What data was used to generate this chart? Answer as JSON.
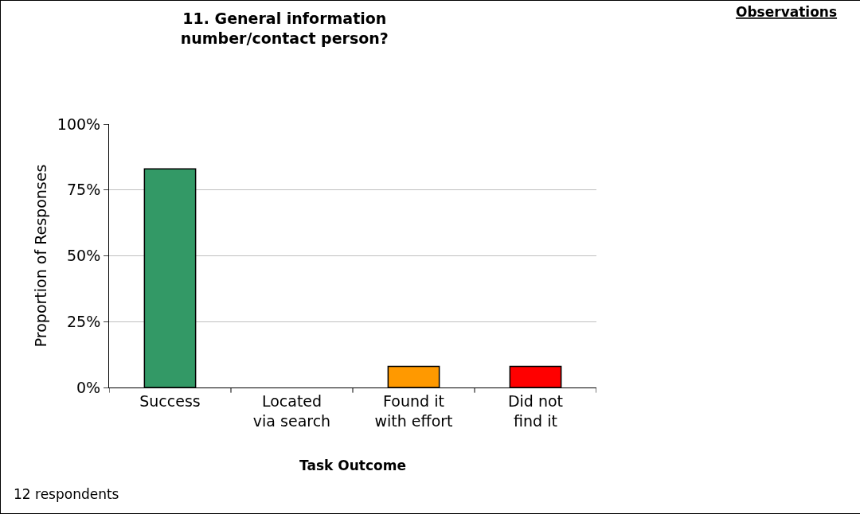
{
  "chart_data": {
    "type": "bar",
    "title": "11. General information\nnumber/contact person?",
    "xlabel": "Task Outcome",
    "ylabel": "Proportion of Responses",
    "categories": [
      "Success",
      "Located\nvia search",
      "Found it\nwith effort",
      "Did not\nfind it"
    ],
    "values": [
      83,
      0,
      8,
      8
    ],
    "colors": [
      "#339966",
      null,
      "#ff9900",
      "#ff0000"
    ],
    "ylim": [
      0,
      100
    ],
    "yticks": [
      {
        "value": 0,
        "label": "0%"
      },
      {
        "value": 25,
        "label": "25%"
      },
      {
        "value": 50,
        "label": "50%"
      },
      {
        "value": 75,
        "label": "75%"
      },
      {
        "value": 100,
        "label": "100%"
      }
    ],
    "grid": "y",
    "legend": false,
    "annotations": [
      "Observations",
      "12 respondents"
    ]
  }
}
